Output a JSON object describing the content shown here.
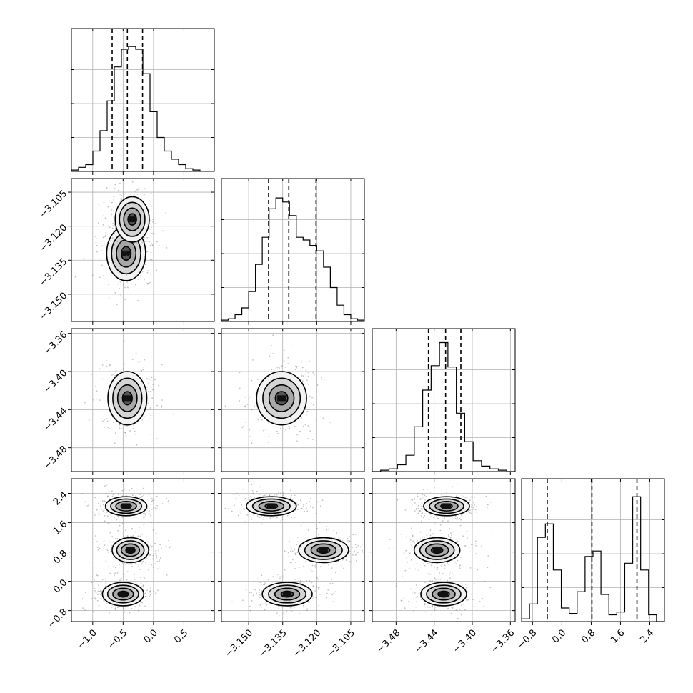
{
  "chart_data": {
    "type": "corner",
    "title": "",
    "parameters": [
      {
        "range": [
          -1.35,
          1.0
        ],
        "ticks": [
          "-1.0",
          "-0.5",
          "0.0",
          "0.5"
        ],
        "tick_values": [
          -1.0,
          -0.5,
          0.0,
          0.5
        ],
        "quantiles": [
          -0.68,
          -0.43,
          -0.18
        ],
        "hist_ymax": 1.0,
        "histogram": [
          0.01,
          0.03,
          0.05,
          0.15,
          0.3,
          0.52,
          0.77,
          0.9,
          0.92,
          0.9,
          0.72,
          0.44,
          0.25,
          0.15,
          0.09,
          0.05,
          0.02,
          0.01,
          0.0,
          0.0
        ]
      },
      {
        "range": [
          -3.162,
          -3.099
        ],
        "ticks": [
          "-3.150",
          "-3.135",
          "-3.120",
          "-3.105"
        ],
        "tick_values": [
          -3.15,
          -3.135,
          -3.12,
          -3.105
        ],
        "quantiles": [
          -3.1412,
          -3.1323,
          -3.1203
        ],
        "hist_ymax": 1.0,
        "histogram": [
          0.01,
          0.02,
          0.05,
          0.1,
          0.22,
          0.42,
          0.62,
          0.83,
          0.91,
          0.88,
          0.78,
          0.62,
          0.6,
          0.56,
          0.52,
          0.4,
          0.25,
          0.12,
          0.05,
          0.02,
          0.01
        ]
      },
      {
        "range": [
          -3.505,
          -3.355
        ],
        "ticks": [
          "-3.48",
          "-3.44",
          "-3.40",
          "-3.36"
        ],
        "tick_values": [
          -3.48,
          -3.44,
          -3.4,
          -3.36
        ],
        "quantiles": [
          -3.446,
          -3.428,
          -3.412
        ],
        "hist_ymax": 1.0,
        "histogram": [
          0.0,
          0.01,
          0.02,
          0.05,
          0.12,
          0.33,
          0.6,
          0.78,
          0.95,
          0.77,
          0.43,
          0.22,
          0.08,
          0.04,
          0.02,
          0.01,
          0.0
        ]
      },
      {
        "range": [
          -1.1,
          2.8
        ],
        "ticks": [
          "-0.8",
          "0.0",
          "0.8",
          "1.6",
          "2.4"
        ],
        "tick_values": [
          -0.8,
          0.0,
          0.8,
          1.6,
          2.4
        ],
        "quantiles": [
          -0.4,
          0.82,
          2.05
        ],
        "hist_ymax": 1.0,
        "histogram": [
          0.02,
          0.13,
          0.62,
          0.72,
          0.38,
          0.1,
          0.06,
          0.22,
          0.48,
          0.52,
          0.2,
          0.05,
          0.07,
          0.43,
          0.92,
          0.38,
          0.05,
          0.0
        ]
      }
    ],
    "modes": {
      "1": [
        {
          "center": [
            -0.45,
            -3.132
          ],
          "sigma": [
            0.16,
            0.006
          ]
        },
        {
          "center": [
            -0.35,
            -3.117
          ],
          "sigma": [
            0.14,
            0.005
          ]
        }
      ],
      "2": [
        {
          "center": [
            -0.43,
            -3.428
          ],
          "sigma": [
            0.16,
            0.014
          ]
        }
      ],
      "3": [
        {
          "center": [
            -0.45,
            2.05
          ],
          "sigma": [
            0.17,
            0.13
          ]
        },
        {
          "center": [
            -0.38,
            0.85
          ],
          "sigma": [
            0.15,
            0.17
          ]
        },
        {
          "center": [
            -0.5,
            -0.35
          ],
          "sigma": [
            0.17,
            0.16
          ]
        }
      ]
    }
  }
}
